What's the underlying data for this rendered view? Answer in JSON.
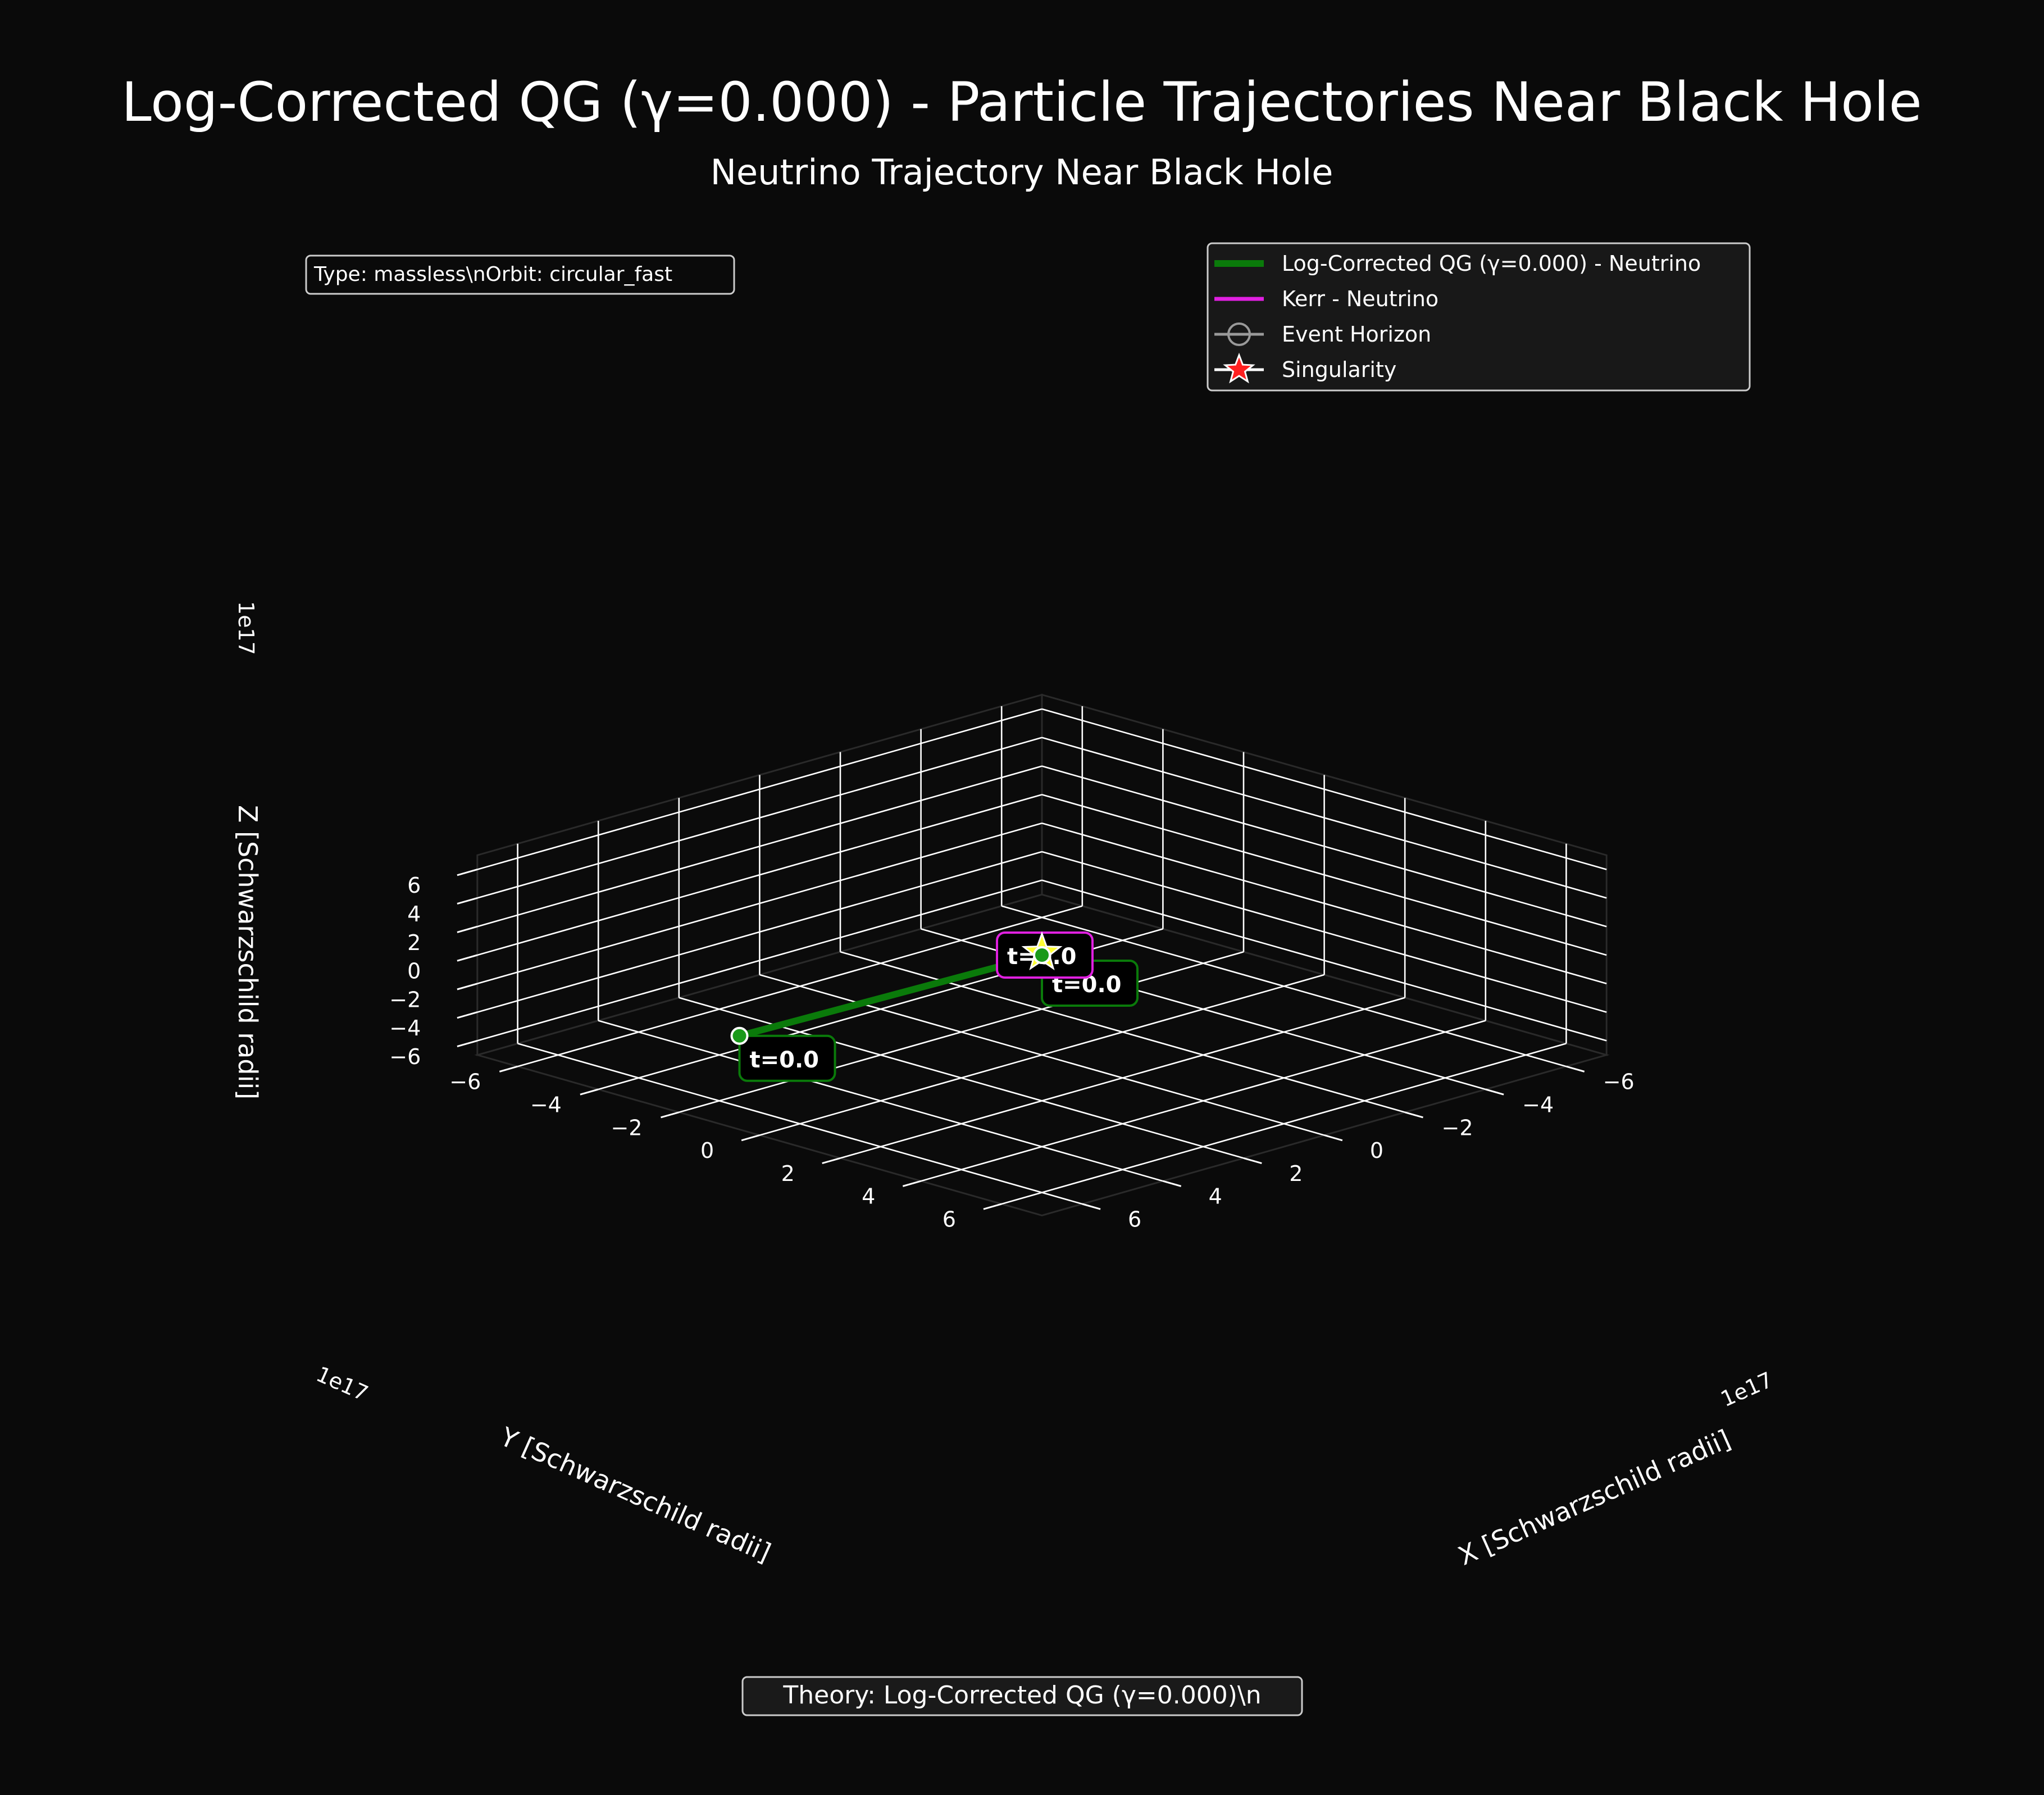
{
  "figure": {
    "title": "Log-Corrected QG (γ=0.000) - Particle Trajectories Near Black Hole",
    "subtitle": "Neutrino Trajectory Near Black Hole",
    "info_box": "Type: massless\\nOrbit: circular_fast",
    "footer": "Theory: Log-Corrected QG (γ=0.000)\\n",
    "colors": {
      "background": "#0a0a0a",
      "grid": "#ffffff",
      "qg_trajectory": "#0a7a0a",
      "kerr_trajectory": "#e020e0",
      "horizon": "#cccccc",
      "singularity_fill": "#ff2020",
      "singularity_edge": "#ffffff",
      "marker": "#ffff33"
    }
  },
  "chart_data": {
    "type": "line3d",
    "title": "Neutrino Trajectory Near Black Hole",
    "xlabel": "X [Schwarzschild radii]",
    "ylabel": "Y [Schwarzschild radii]",
    "zlabel": "Z [Schwarzschild radii]",
    "axis_scale_label": "1e17",
    "xlim": [
      -7,
      7
    ],
    "ylim": [
      -7,
      7
    ],
    "zlim": [
      -7,
      7
    ],
    "x_ticks": [
      -6,
      -4,
      -2,
      0,
      2,
      4,
      6
    ],
    "y_ticks": [
      -6,
      -4,
      -2,
      0,
      2,
      4,
      6
    ],
    "z_ticks": [
      -6,
      -4,
      -2,
      0,
      2,
      4,
      6
    ],
    "x_tick_labels": [
      "−6",
      "−4",
      "−2",
      "0",
      "2",
      "4",
      "6"
    ],
    "y_tick_labels": [
      "−6",
      "−4",
      "−2",
      "0",
      "2",
      "4",
      "6"
    ],
    "z_tick_labels": [
      "−6",
      "−4",
      "−2",
      "0",
      "2",
      "4",
      "6"
    ],
    "grid": true,
    "legend_position": "top-right",
    "legend": [
      {
        "label": "Log-Corrected QG (γ=0.000) - Neutrino",
        "kind": "line",
        "color": "#0a7a0a"
      },
      {
        "label": "Kerr - Neutrino",
        "kind": "line",
        "color": "#e020e0"
      },
      {
        "label": "Event Horizon",
        "kind": "circle",
        "color": "#cccccc"
      },
      {
        "label": "Singularity",
        "kind": "star",
        "color": "#ff2020"
      }
    ],
    "series": [
      {
        "name": "Log-Corrected QG (γ=0.000) - Neutrino",
        "color": "#0a7a0a",
        "points": [
          [
            6.9,
            -0.6,
            -0.6
          ],
          [
            0.0,
            0.0,
            0.0
          ]
        ],
        "start_label": "t=0.0",
        "end_label": "t=0.0"
      },
      {
        "name": "Kerr - Neutrino",
        "color": "#e020e0",
        "points": [
          [
            0.0,
            0.0,
            0.0
          ],
          [
            0.0,
            0.0,
            0.0
          ]
        ],
        "start_label": "t=0.0"
      }
    ],
    "singularity": [
      0,
      0,
      0
    ],
    "event_horizon_center": [
      0,
      0,
      0
    ]
  }
}
